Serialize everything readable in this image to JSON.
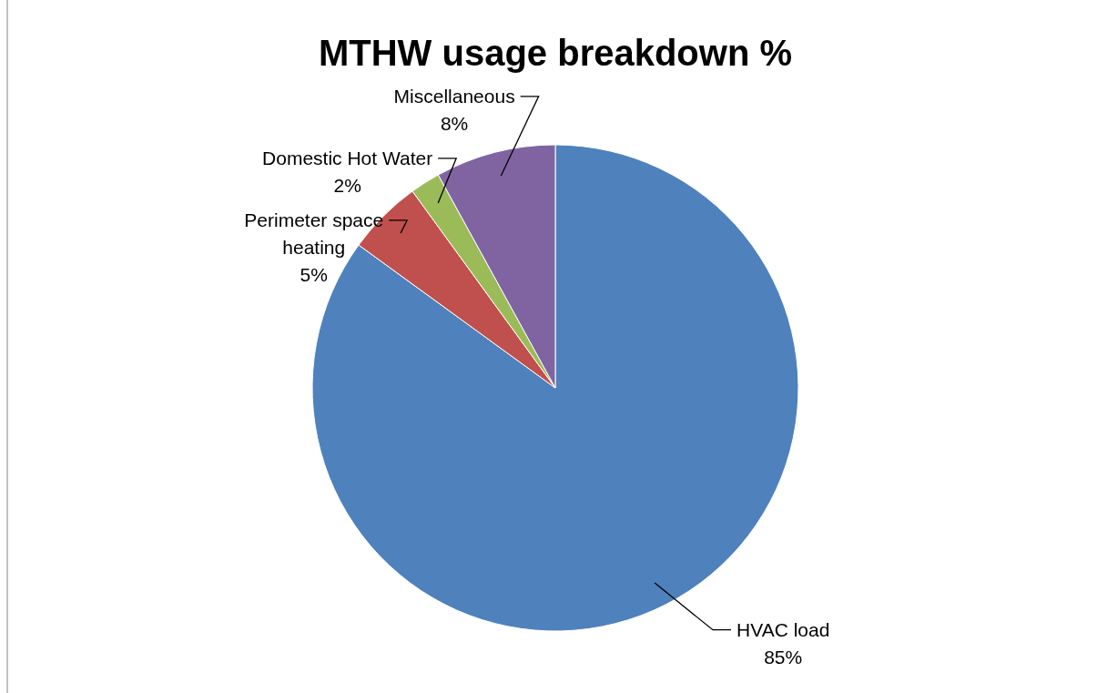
{
  "chart_data": {
    "type": "pie",
    "title": "MTHW usage breakdown %",
    "categories": [
      "HVAC load",
      "Perimeter space heating",
      "Domestic Hot Water",
      "Miscellaneous"
    ],
    "values": [
      85,
      5,
      2,
      8
    ],
    "colors": [
      "#4f81bd",
      "#c0504d",
      "#9bbb59",
      "#8064a2"
    ],
    "value_labels": [
      "85%",
      "5%",
      "2%",
      "8%"
    ]
  }
}
